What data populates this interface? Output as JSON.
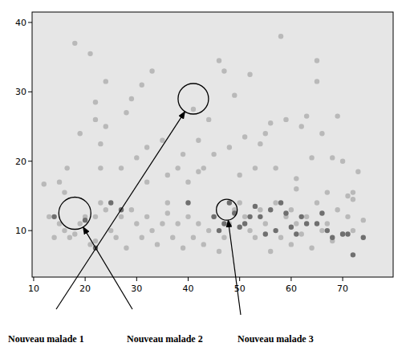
{
  "chart_data": {
    "type": "scatter",
    "xlim": [
      9.7,
      79.8
    ],
    "ylim": [
      3.3,
      41.5
    ],
    "xticks": [
      10,
      20,
      30,
      40,
      50,
      60,
      70
    ],
    "yticks": [
      10,
      20,
      30,
      40
    ],
    "grid": false,
    "series": [
      {
        "color": "#b9b9b9",
        "marker": "circle",
        "x": [
          12,
          15,
          16,
          16.5,
          18,
          19,
          21,
          22,
          22,
          23,
          23,
          24,
          24,
          27,
          28,
          29,
          30,
          31,
          32,
          32,
          33,
          35,
          36,
          36,
          38,
          39,
          40,
          41,
          42,
          42,
          43,
          44,
          45,
          46,
          47,
          48,
          49,
          50,
          51,
          52,
          53,
          54,
          55,
          56,
          57,
          58,
          59,
          60,
          61,
          61,
          62,
          63,
          64,
          65,
          65,
          66,
          67,
          68,
          69,
          70,
          71,
          72,
          73,
          74,
          72,
          13,
          14,
          15,
          16,
          17,
          18,
          19,
          20,
          21,
          22,
          22,
          23,
          24,
          25,
          26,
          27,
          28,
          29,
          30,
          31,
          32,
          33,
          34,
          35,
          36,
          37,
          38,
          39,
          40,
          41,
          42,
          43,
          44,
          45,
          46,
          47,
          48,
          49,
          50,
          51,
          52,
          53,
          54,
          55,
          56,
          57,
          58,
          59,
          60,
          61,
          62,
          63,
          64,
          65,
          66,
          67,
          68,
          69,
          70,
          71,
          72
        ],
        "values": [
          16.7,
          17,
          15.5,
          19,
          37,
          24,
          35.5,
          28.5,
          26,
          22.5,
          19,
          31.5,
          25,
          19,
          27,
          29,
          20.5,
          31,
          22,
          17,
          33,
          23,
          14,
          18,
          19,
          21,
          17,
          27.5,
          23,
          18.5,
          19,
          26,
          21,
          34.5,
          33,
          22,
          29.5,
          18,
          23.5,
          32.5,
          19,
          22.5,
          24,
          25.5,
          19,
          38,
          26,
          13,
          17.5,
          16,
          25,
          26.5,
          20.5,
          31.5,
          34.5,
          24,
          15.5,
          20.5,
          26.5,
          20,
          15,
          15.5,
          18.5,
          11.5,
          14.5,
          12,
          9,
          11,
          10,
          9,
          9.5,
          11,
          12,
          8,
          8.5,
          12,
          14,
          13,
          10,
          9,
          12,
          7.5,
          13,
          11,
          9,
          12,
          10,
          8,
          11,
          12.5,
          9,
          11,
          7.5,
          12,
          9,
          11,
          8,
          10,
          12,
          7,
          9,
          11,
          13,
          14,
          12,
          10,
          9,
          13,
          11,
          7,
          14,
          9,
          12,
          8,
          11,
          9.5,
          12,
          7.5,
          14,
          10,
          11,
          8.5,
          13,
          9.5,
          12,
          10
        ]
      },
      {
        "color": "#6f6f6f",
        "marker": "circle",
        "x": [
          14,
          20,
          22,
          25,
          27,
          40,
          45,
          46,
          47,
          48,
          49,
          50,
          51,
          52,
          53,
          54,
          55,
          56,
          57,
          58,
          59,
          60,
          61,
          62,
          63,
          65,
          66,
          67,
          68,
          70,
          71,
          72,
          74
        ],
        "values": [
          12,
          11.5,
          7.5,
          14,
          13,
          14,
          12,
          10,
          11,
          14,
          12.5,
          10.5,
          11,
          12,
          13.5,
          12,
          9.5,
          13,
          10,
          14,
          12.5,
          10.5,
          9.5,
          12,
          11,
          11,
          12.5,
          10,
          9,
          9.5,
          9.5,
          6.5,
          9
        ]
      }
    ],
    "annotations": [
      {
        "text": "Nouveau malade 1",
        "x": 18,
        "y": 12.5
      },
      {
        "text": "Nouveau malade 2",
        "x": 41,
        "y": 29
      },
      {
        "text": "Nouveau malade 3",
        "x": 47.5,
        "y": 13
      }
    ]
  }
}
